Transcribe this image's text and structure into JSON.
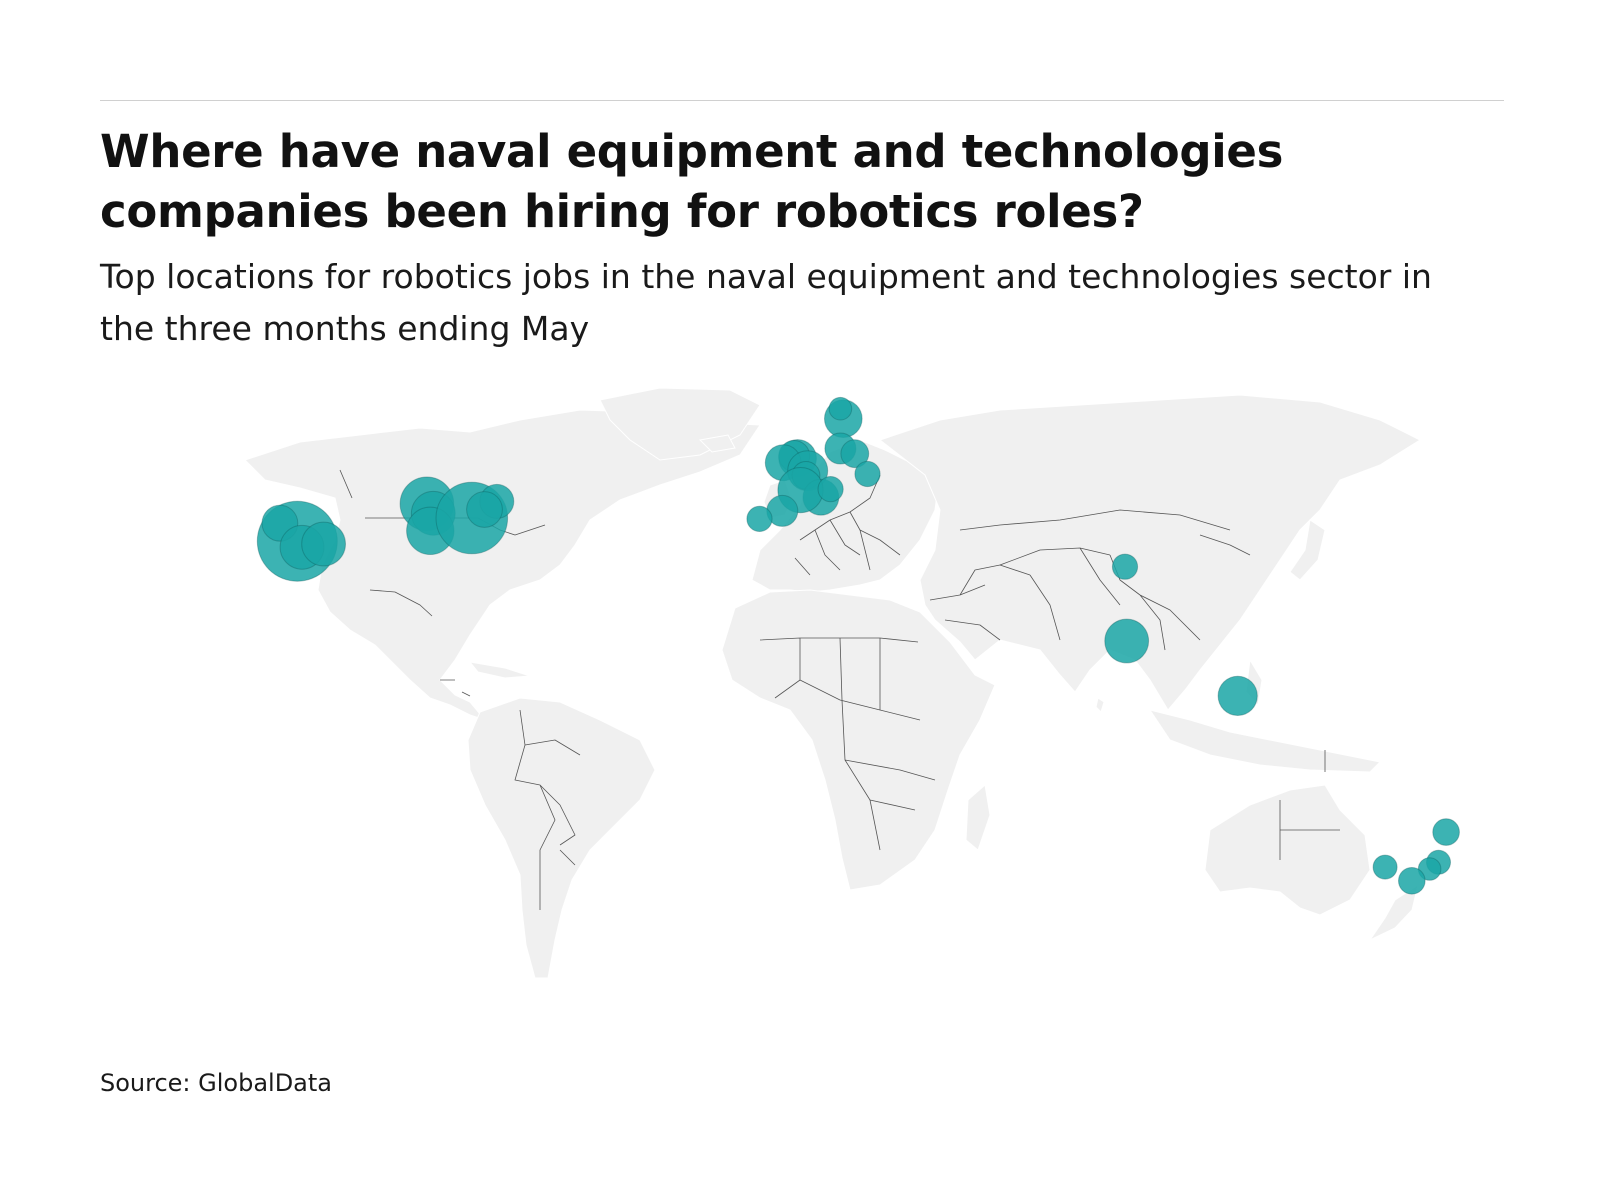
{
  "header": {
    "title": "Where have naval equipment and technologies companies been hiring for robotics roles?",
    "subtitle": "Top locations for robotics jobs in the naval equipment and technologies sector in the three months ending May"
  },
  "footer": {
    "source": "Source: GlobalData"
  },
  "colors": {
    "land": "#f0f0f0",
    "border": "#555555",
    "bubble": "#1aa6a6",
    "rule": "#d0d0d0"
  },
  "map": {
    "projection": "equirectangular world map",
    "bubbles": [
      {
        "lat": 34.0,
        "lon": -118.2,
        "size": 1.0
      },
      {
        "lat": 37.8,
        "lon": -122.3,
        "size": 0.2
      },
      {
        "lat": 32.7,
        "lon": -117.1,
        "size": 0.3
      },
      {
        "lat": 33.4,
        "lon": -112.0,
        "size": 0.3
      },
      {
        "lat": 41.9,
        "lon": -87.6,
        "size": 0.45
      },
      {
        "lat": 39.9,
        "lon": -86.1,
        "size": 0.3
      },
      {
        "lat": 36.2,
        "lon": -86.8,
        "size": 0.35
      },
      {
        "lat": 38.9,
        "lon": -77.0,
        "size": 0.8
      },
      {
        "lat": 42.4,
        "lon": -71.1,
        "size": 0.18
      },
      {
        "lat": 40.7,
        "lon": -74.0,
        "size": 0.2
      },
      {
        "lat": 51.5,
        "lon": -0.1,
        "size": 0.22
      },
      {
        "lat": 52.0,
        "lon": -0.9,
        "size": 0.15
      },
      {
        "lat": 50.6,
        "lon": -3.5,
        "size": 0.2
      },
      {
        "lat": 48.9,
        "lon": 2.3,
        "size": 0.25
      },
      {
        "lat": 47.9,
        "lon": 1.9,
        "size": 0.12
      },
      {
        "lat": 43.3,
        "lon": 5.4,
        "size": 0.2
      },
      {
        "lat": 44.8,
        "lon": 0.6,
        "size": 0.32
      },
      {
        "lat": 45.0,
        "lon": 7.7,
        "size": 0.1
      },
      {
        "lat": 40.4,
        "lon": -3.7,
        "size": 0.15
      },
      {
        "lat": 38.7,
        "lon": -9.1,
        "size": 0.1
      },
      {
        "lat": 59.9,
        "lon": 10.7,
        "size": 0.22
      },
      {
        "lat": 62.0,
        "lon": 10.0,
        "size": 0.08
      },
      {
        "lat": 53.6,
        "lon": 10.0,
        "size": 0.15
      },
      {
        "lat": 52.5,
        "lon": 13.4,
        "size": 0.12
      },
      {
        "lat": 48.2,
        "lon": 16.4,
        "size": 0.1
      },
      {
        "lat": 28.6,
        "lon": 77.2,
        "size": 0.1
      },
      {
        "lat": 12.9,
        "lon": 77.6,
        "size": 0.3
      },
      {
        "lat": 1.3,
        "lon": 103.8,
        "size": 0.24
      },
      {
        "lat": -27.5,
        "lon": 153.0,
        "size": 0.11
      },
      {
        "lat": -33.9,
        "lon": 151.2,
        "size": 0.09
      },
      {
        "lat": -35.3,
        "lon": 149.1,
        "size": 0.08
      },
      {
        "lat": -37.8,
        "lon": 144.9,
        "size": 0.11
      },
      {
        "lat": -34.9,
        "lon": 138.6,
        "size": 0.09
      }
    ]
  }
}
